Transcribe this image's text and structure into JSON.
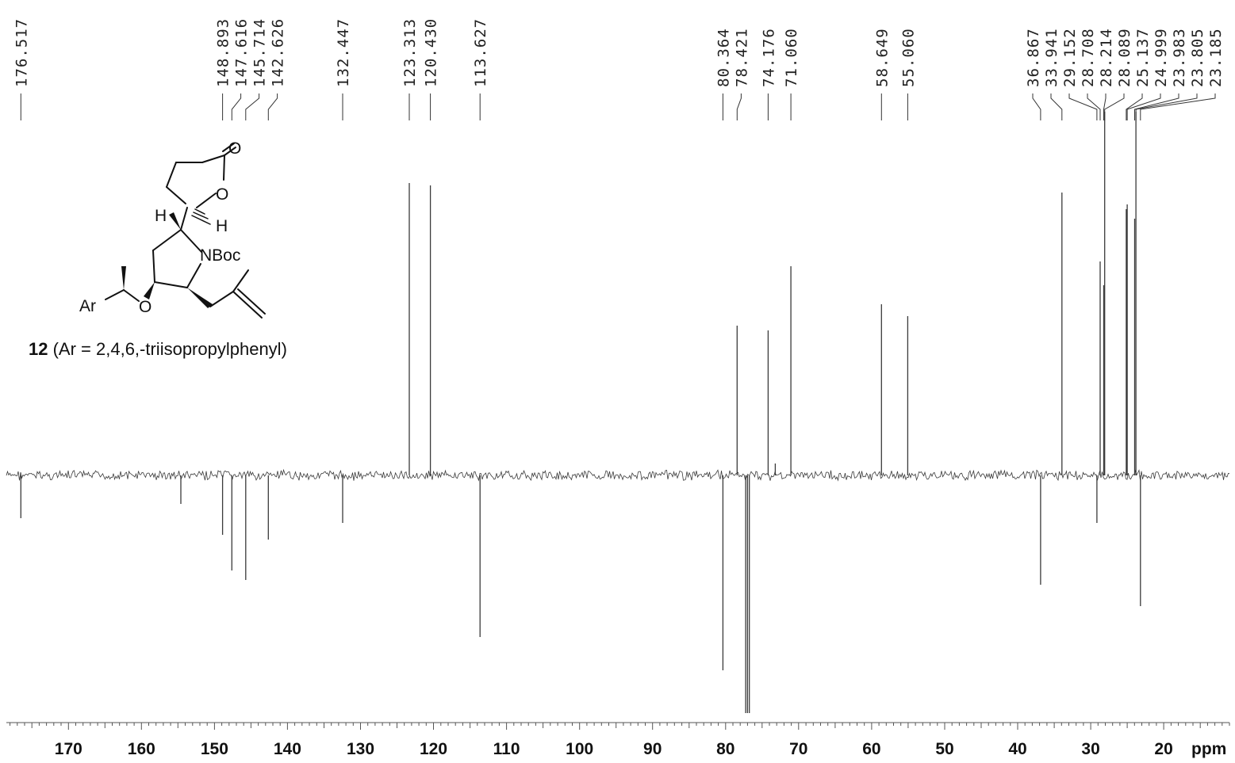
{
  "chart_data": {
    "type": "line",
    "title": "",
    "xlabel": "ppm",
    "ylabel": "",
    "x_reversed": true,
    "xlim": [
      178.5,
      11
    ],
    "x_ticks": [
      170,
      160,
      150,
      140,
      130,
      120,
      110,
      100,
      90,
      80,
      70,
      60,
      50,
      40,
      30,
      20
    ],
    "x_tick_labels": [
      "170",
      "160",
      "150",
      "140",
      "130",
      "120",
      "110",
      "100",
      "90",
      "80",
      "70",
      "60",
      "50",
      "40",
      "30",
      "20"
    ],
    "minor_tick_step": 1,
    "baseline": 0,
    "ylim": [
      -1.0,
      1.45
    ],
    "peak_labels": [
      "176.517",
      "148.893",
      "147.616",
      "145.714",
      "142.626",
      "132.447",
      "123.313",
      "120.430",
      "113.627",
      "80.364",
      "78.421",
      "74.176",
      "71.060",
      "58.649",
      "55.060",
      "36.867",
      "33.941",
      "29.152",
      "28.708",
      "28.214",
      "28.089",
      "25.137",
      "24.999",
      "23.983",
      "23.805",
      "23.185"
    ],
    "peaks": [
      {
        "ppm": 176.517,
        "intensity": -0.18
      },
      {
        "ppm": 154.6,
        "intensity": -0.12
      },
      {
        "ppm": 148.893,
        "intensity": -0.25
      },
      {
        "ppm": 147.616,
        "intensity": -0.4
      },
      {
        "ppm": 145.714,
        "intensity": -0.44
      },
      {
        "ppm": 142.626,
        "intensity": -0.27
      },
      {
        "ppm": 132.447,
        "intensity": -0.2
      },
      {
        "ppm": 123.313,
        "intensity": 1.23
      },
      {
        "ppm": 120.43,
        "intensity": 1.22
      },
      {
        "ppm": 113.627,
        "intensity": -0.68
      },
      {
        "ppm": 80.364,
        "intensity": -0.82
      },
      {
        "ppm": 78.421,
        "intensity": 0.63
      },
      {
        "ppm": 77.25,
        "intensity": -1.0
      },
      {
        "ppm": 77.0,
        "intensity": -1.0
      },
      {
        "ppm": 76.75,
        "intensity": -1.0
      },
      {
        "ppm": 74.176,
        "intensity": 0.61
      },
      {
        "ppm": 73.2,
        "intensity": 0.05
      },
      {
        "ppm": 71.06,
        "intensity": 0.88
      },
      {
        "ppm": 58.649,
        "intensity": 0.72
      },
      {
        "ppm": 55.06,
        "intensity": 0.67
      },
      {
        "ppm": 36.867,
        "intensity": -0.46
      },
      {
        "ppm": 33.941,
        "intensity": 1.19
      },
      {
        "ppm": 29.152,
        "intensity": -0.2
      },
      {
        "ppm": 28.708,
        "intensity": 0.9
      },
      {
        "ppm": 28.214,
        "intensity": 0.8
      },
      {
        "ppm": 28.089,
        "intensity": 1.53
      },
      {
        "ppm": 25.137,
        "intensity": 1.12
      },
      {
        "ppm": 24.999,
        "intensity": 1.14
      },
      {
        "ppm": 23.983,
        "intensity": 1.08
      },
      {
        "ppm": 23.805,
        "intensity": 1.53
      },
      {
        "ppm": 23.185,
        "intensity": -0.55
      }
    ]
  },
  "structure": {
    "labels": {
      "carbonyl_o": "O",
      "ring_o": "O",
      "h_left": "H",
      "h_right": "H",
      "nboc": "NBoc",
      "ether_o": "O",
      "ar": "Ar"
    },
    "caption_number": "12",
    "caption_text": " (Ar = 2,4,6,-triisopropylphenyl)"
  },
  "colors": {
    "trace": "#3a3a3a",
    "text": "#111111"
  }
}
